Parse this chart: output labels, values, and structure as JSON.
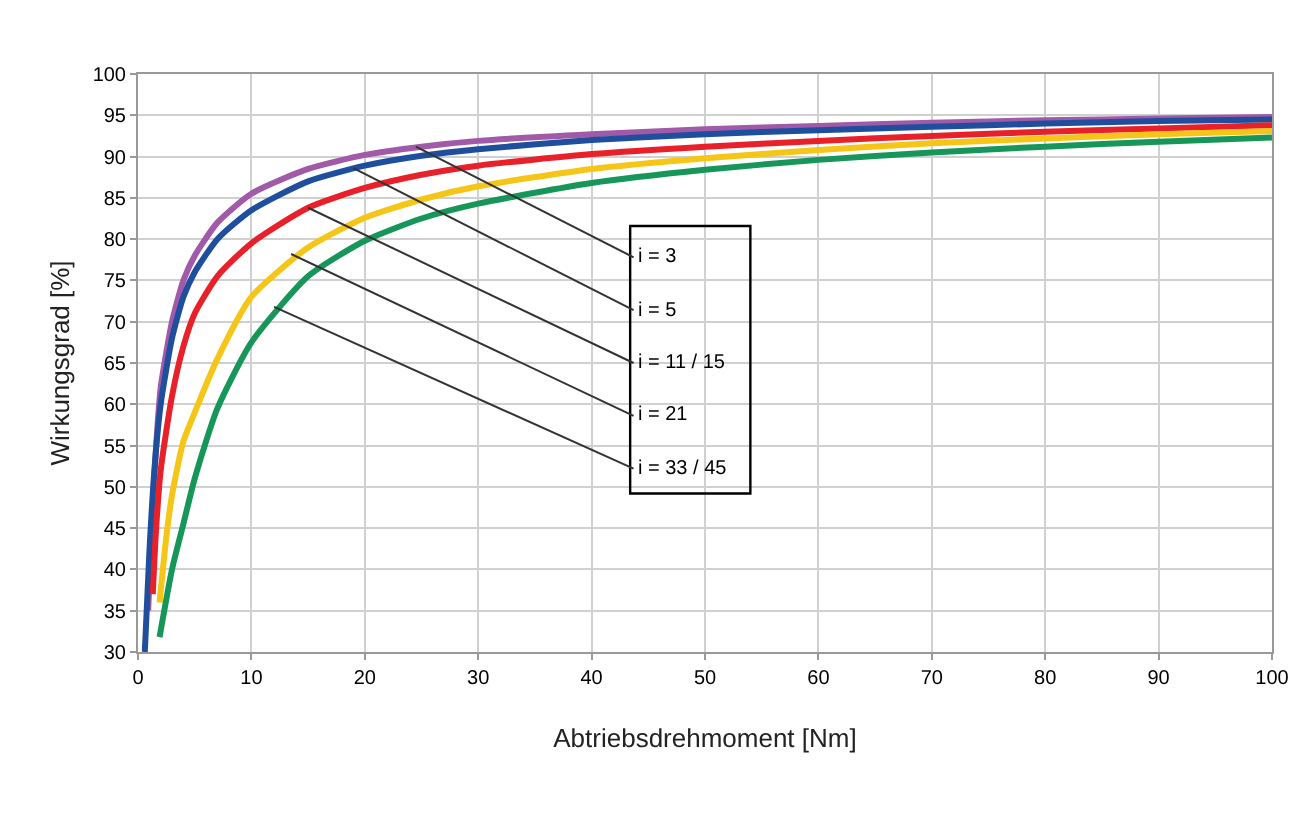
{
  "chart_data": {
    "type": "line",
    "xlabel": "Abtriebsdrehmoment [Nm]",
    "ylabel": "Wirkungsgrad [%]",
    "xlim": [
      0,
      100
    ],
    "xticks": [
      0,
      10,
      20,
      30,
      40,
      50,
      60,
      70,
      80,
      90,
      100
    ],
    "ylim": [
      30,
      100
    ],
    "yticks": [
      30,
      35,
      40,
      45,
      50,
      55,
      60,
      65,
      70,
      75,
      80,
      85,
      90,
      95,
      100
    ],
    "grid": true,
    "marker": "none",
    "line_style": "solid",
    "series": [
      {
        "color": "#a05aa8",
        "x": [
          0.9,
          1.2,
          1.6,
          2,
          3,
          4,
          5,
          7,
          10,
          15,
          20,
          25,
          30,
          40,
          50,
          60,
          70,
          80,
          90,
          100
        ],
        "values": [
          35,
          45,
          55,
          62,
          70,
          75,
          78,
          82,
          85.5,
          88.5,
          90.2,
          91.2,
          91.9,
          92.7,
          93.3,
          93.7,
          94.1,
          94.4,
          94.6,
          94.8
        ]
      },
      {
        "color": "#1f4e9c",
        "x": [
          0.6,
          1,
          1.5,
          2,
          3,
          4,
          5,
          7,
          10,
          15,
          20,
          25,
          30,
          40,
          50,
          60,
          70,
          80,
          90,
          100
        ],
        "values": [
          30,
          42,
          53,
          60,
          68,
          73,
          76,
          80,
          83.5,
          87,
          88.9,
          90.1,
          90.9,
          92,
          92.7,
          93.2,
          93.6,
          94,
          94.3,
          94.5
        ]
      },
      {
        "color": "#e8202a",
        "x": [
          1.3,
          1.6,
          2,
          3,
          4,
          5,
          7,
          10,
          15,
          20,
          25,
          30,
          40,
          50,
          60,
          70,
          80,
          90,
          100
        ],
        "values": [
          37,
          45,
          52,
          61,
          67,
          71,
          75.5,
          79.5,
          83.8,
          86.2,
          87.8,
          88.9,
          90.3,
          91.2,
          91.9,
          92.5,
          93,
          93.4,
          93.8
        ]
      },
      {
        "color": "#f5c518",
        "x": [
          1.9,
          2.5,
          3,
          4,
          5,
          7,
          10,
          15,
          20,
          25,
          30,
          40,
          50,
          60,
          70,
          80,
          90,
          100
        ],
        "values": [
          36,
          44,
          49,
          55.5,
          59,
          65.5,
          73,
          79,
          82.6,
          84.8,
          86.4,
          88.5,
          89.8,
          90.8,
          91.6,
          92.2,
          92.7,
          93.1
        ]
      },
      {
        "color": "#17965a",
        "x": [
          1.9,
          3,
          4,
          5,
          7,
          10,
          15,
          20,
          25,
          30,
          40,
          50,
          60,
          70,
          80,
          90,
          100
        ],
        "values": [
          31.8,
          40,
          45.5,
          51,
          59.5,
          67.5,
          75.5,
          79.8,
          82.5,
          84.3,
          86.8,
          88.4,
          89.6,
          90.5,
          91.2,
          91.8,
          92.3
        ]
      }
    ],
    "annotations": [
      {
        "text": "i = 3",
        "x": 24.5,
        "y": 91.2
      },
      {
        "text": "i = 5",
        "x": 19,
        "y": 88.6
      },
      {
        "text": "i = 11 / 15",
        "x": 15,
        "y": 83.8
      },
      {
        "text": "i = 21",
        "x": 13.5,
        "y": 78.2
      },
      {
        "text": "i = 33 / 45",
        "x": 12,
        "y": 71.8
      }
    ]
  }
}
